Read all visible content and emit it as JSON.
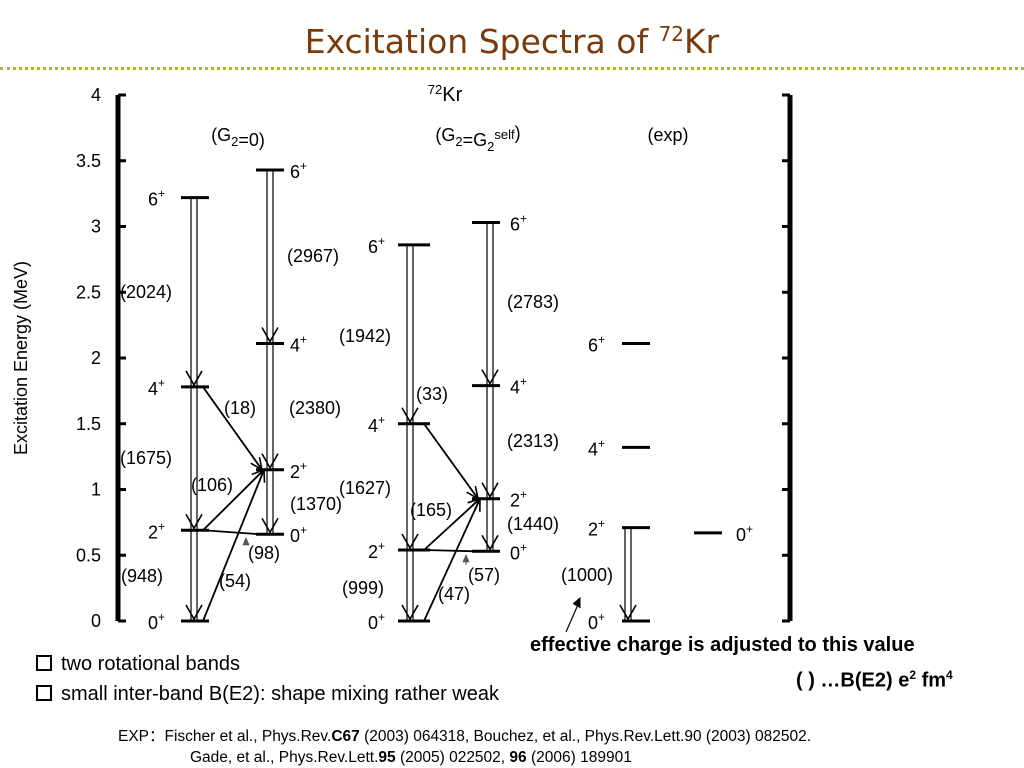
{
  "title": {
    "text": "Excitation Spectra of ",
    "sup": "72",
    "rest": "Kr"
  },
  "diagram": {
    "y_axis": {
      "label": "Excitation Energy (MeV)",
      "ticks": [
        "0",
        "0.5",
        "1",
        "1.5",
        "2",
        "2.5",
        "3",
        "3.5",
        "4"
      ],
      "range": [
        0,
        4
      ]
    },
    "nucleus": {
      "mass": "72",
      "symbol": "Kr"
    },
    "panels": [
      {
        "id": "g2zero",
        "header": "(G2=0)",
        "levels": [
          {
            "energy": 0.0,
            "spin": "0",
            "band": 1
          },
          {
            "energy": 0.69,
            "spin": "2",
            "band": 1
          },
          {
            "energy": 1.78,
            "spin": "4",
            "band": 1
          },
          {
            "energy": 3.22,
            "spin": "6",
            "band": 1
          },
          {
            "energy": 0.66,
            "spin": "0",
            "band": 2
          },
          {
            "energy": 1.15,
            "spin": "2",
            "band": 2
          },
          {
            "energy": 2.11,
            "spin": "4",
            "band": 2
          },
          {
            "energy": 3.43,
            "spin": "6",
            "band": 2
          }
        ],
        "labels": {
          "b1_2_0": "(948)",
          "b1_4_2": "(1675)",
          "b1_6_4": "(2024)",
          "b2_6_4": "(2967)",
          "b2_4_2": "(2380)",
          "b2_2_0": "(1370)",
          "inter_4_2": "(18)",
          "inter_2_2": "(106)",
          "inter_2_0": "(54)",
          "inter_0_2": "(98)"
        }
      },
      {
        "id": "g2self",
        "header": "(G2=G2self)",
        "levels": [
          {
            "energy": 0.0,
            "spin": "0",
            "band": 1
          },
          {
            "energy": 0.54,
            "spin": "2",
            "band": 1
          },
          {
            "energy": 1.5,
            "spin": "4",
            "band": 1
          },
          {
            "energy": 2.86,
            "spin": "6",
            "band": 1
          },
          {
            "energy": 0.53,
            "spin": "0",
            "band": 2
          },
          {
            "energy": 0.93,
            "spin": "2",
            "band": 2
          },
          {
            "energy": 1.79,
            "spin": "4",
            "band": 2
          },
          {
            "energy": 3.03,
            "spin": "6",
            "band": 2
          }
        ],
        "labels": {
          "b1_2_0": "(999)",
          "b1_4_2": "(1627)",
          "b1_6_4": "(1942)",
          "b2_6_4": "(2783)",
          "b2_4_2": "(2313)",
          "b2_2_0": "(1440)",
          "inter_4_2": "(33)",
          "inter_2_2": "(165)",
          "inter_2_0": "(47)",
          "inter_0_2": "(57)"
        }
      },
      {
        "id": "exp",
        "header": "(exp)",
        "levels": [
          {
            "energy": 0.0,
            "spin": "0",
            "band": 1
          },
          {
            "energy": 0.71,
            "spin": "2",
            "band": 1
          },
          {
            "energy": 1.32,
            "spin": "4",
            "band": 1
          },
          {
            "energy": 2.11,
            "spin": "6",
            "band": 1
          },
          {
            "energy": 0.67,
            "spin": "0",
            "band": 2
          }
        ],
        "labels": {
          "b1_2_0": "(1000)"
        }
      }
    ]
  },
  "bullets": [
    "two rotational bands",
    "small inter-band B(E2): shape mixing rather weak"
  ],
  "note": "effective charge is adjusted to this value",
  "legend": {
    "prefix": "(  ) …B(E2) e",
    "sup1": "2",
    "mid": " fm",
    "sup2": "4"
  },
  "references": {
    "line1": [
      {
        "t": "EXP：Fischer et al., Phys.Rev.",
        "b": false
      },
      {
        "t": "C67",
        "b": true
      },
      {
        "t": " (2003) 064318,  Bouchez, et al., Phys.Rev.Lett.90 (2003) 082502.",
        "b": false
      }
    ],
    "line2": [
      {
        "t": "Gade, et al., Phys.Rev.Lett.",
        "b": false
      },
      {
        "t": "95",
        "b": true
      },
      {
        "t": " (2005) 022502,  ",
        "b": false
      },
      {
        "t": "96",
        "b": true
      },
      {
        "t": " (2006) 189901",
        "b": false
      }
    ]
  }
}
